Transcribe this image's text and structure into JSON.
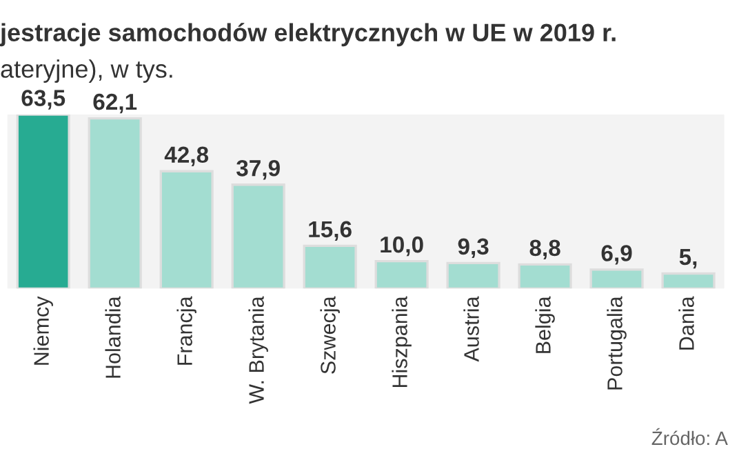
{
  "chart_data": {
    "type": "bar",
    "title": "jestracje samochodów elektrycznych w UE w 2019 r.",
    "subtitle": "ateryjne), w tys.",
    "categories": [
      "Niemcy",
      "Holandia",
      "Francja",
      "W. Brytania",
      "Szwecja",
      "Hiszpania",
      "Austria",
      "Belgia",
      "Portugalia",
      "Dania"
    ],
    "values": [
      63.5,
      62.1,
      42.8,
      37.9,
      15.6,
      10.0,
      9.3,
      8.8,
      6.9,
      5.5
    ],
    "colors": [
      "#27ab92",
      "#a3ddd1",
      "#a3ddd1",
      "#a3ddd1",
      "#a3ddd1",
      "#a3ddd1",
      "#a3ddd1",
      "#a3ddd1",
      "#a3ddd1",
      "#a3ddd1"
    ],
    "value_labels": [
      "63,5",
      "62,1",
      "42,8",
      "37,9",
      "15,6",
      "10,0",
      "9,3",
      "8,8",
      "6,9",
      "5,"
    ],
    "annotations": [
      "Źródło: A"
    ],
    "grid": false,
    "legend": false
  }
}
